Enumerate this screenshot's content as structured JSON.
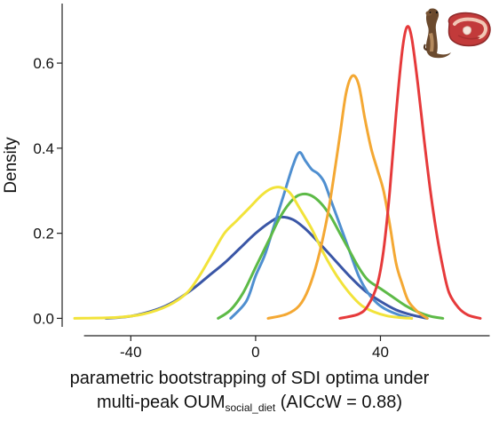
{
  "chart_data": {
    "type": "line",
    "title": "",
    "ylabel": "Density",
    "xlabel_line1": "parametric bootstrapping of SDI optima under",
    "xlabel_line2_prefix": "multi-peak OUM",
    "xlabel_line2_sub": "social_diet",
    "xlabel_line2_suffix": " (AICcW = 0.88)",
    "xlim": [
      -62,
      76
    ],
    "ylim": [
      -0.02,
      0.74
    ],
    "xticks": [
      -40,
      0,
      40
    ],
    "yticks": [
      0.0,
      0.2,
      0.4,
      0.6
    ],
    "ytick_labels": [
      "0.0",
      "0.2",
      "0.4",
      "0.6"
    ],
    "grid": false,
    "icons": [
      "otter-icon",
      "meat-steak-icon"
    ],
    "series": [
      {
        "color": "#3a56a6",
        "x": [
          -48,
          -40,
          -32,
          -26,
          -20,
          -15,
          -10,
          -5,
          0,
          5,
          8,
          12,
          16,
          20,
          25,
          30,
          35,
          40,
          45,
          50,
          55
        ],
        "y": [
          0.0,
          0.005,
          0.02,
          0.04,
          0.07,
          0.1,
          0.13,
          0.165,
          0.2,
          0.228,
          0.238,
          0.232,
          0.21,
          0.18,
          0.14,
          0.1,
          0.065,
          0.04,
          0.02,
          0.008,
          0.0
        ]
      },
      {
        "color": "#4f8fd0",
        "x": [
          -8,
          -3,
          0,
          3,
          6,
          9,
          12,
          14,
          16,
          18,
          20,
          22,
          24,
          27,
          30,
          33,
          36,
          39,
          42,
          46,
          50
        ],
        "y": [
          0.0,
          0.04,
          0.1,
          0.15,
          0.22,
          0.29,
          0.36,
          0.39,
          0.37,
          0.35,
          0.34,
          0.32,
          0.28,
          0.22,
          0.16,
          0.1,
          0.06,
          0.035,
          0.02,
          0.008,
          0.0
        ]
      },
      {
        "color": "#5dba47",
        "x": [
          -12,
          -8,
          -4,
          0,
          4,
          8,
          12,
          15,
          18,
          21,
          24,
          27,
          30,
          33,
          36,
          40,
          44,
          48,
          52,
          56,
          60
        ],
        "y": [
          0.0,
          0.02,
          0.06,
          0.12,
          0.18,
          0.24,
          0.28,
          0.292,
          0.288,
          0.27,
          0.24,
          0.2,
          0.16,
          0.12,
          0.09,
          0.07,
          0.05,
          0.03,
          0.015,
          0.005,
          0.0
        ]
      },
      {
        "color": "#f2e33a",
        "x": [
          -58,
          -45,
          -36,
          -28,
          -22,
          -18,
          -14,
          -10,
          -6,
          -2,
          2,
          5,
          8,
          11,
          14,
          18,
          22,
          26,
          30,
          34,
          38,
          42,
          46,
          50
        ],
        "y": [
          0.0,
          0.002,
          0.01,
          0.03,
          0.06,
          0.1,
          0.15,
          0.2,
          0.23,
          0.26,
          0.29,
          0.305,
          0.308,
          0.295,
          0.26,
          0.21,
          0.15,
          0.1,
          0.06,
          0.03,
          0.015,
          0.006,
          0.002,
          0.0
        ]
      },
      {
        "color": "#f4a833",
        "x": [
          4,
          10,
          14,
          17,
          20,
          23,
          25,
          27,
          29,
          31,
          33,
          35,
          37,
          39,
          41,
          43,
          45,
          47,
          49,
          52,
          55
        ],
        "y": [
          0.0,
          0.01,
          0.03,
          0.07,
          0.14,
          0.24,
          0.33,
          0.43,
          0.53,
          0.57,
          0.55,
          0.47,
          0.4,
          0.35,
          0.3,
          0.22,
          0.13,
          0.08,
          0.04,
          0.015,
          0.0
        ]
      },
      {
        "color": "#e63a3b",
        "x": [
          27,
          33,
          36,
          39,
          41,
          43,
          45,
          47,
          48.5,
          50,
          52,
          54,
          56,
          58,
          60,
          62,
          65,
          68,
          72
        ],
        "y": [
          0.0,
          0.01,
          0.03,
          0.08,
          0.16,
          0.3,
          0.48,
          0.63,
          0.685,
          0.66,
          0.55,
          0.42,
          0.3,
          0.2,
          0.12,
          0.06,
          0.025,
          0.008,
          0.0
        ]
      }
    ]
  }
}
